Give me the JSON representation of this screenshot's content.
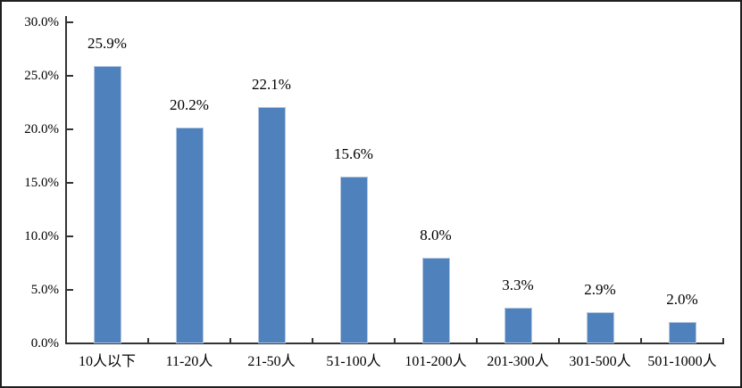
{
  "chart_data": {
    "type": "bar",
    "title": "",
    "xlabel": "",
    "ylabel": "",
    "categories": [
      "10人以下",
      "11-20人",
      "21-50人",
      "51-100人",
      "101-200人",
      "201-300人",
      "301-500人",
      "501-1000人"
    ],
    "values": [
      25.9,
      20.2,
      22.1,
      15.6,
      8.0,
      3.3,
      2.9,
      2.0
    ],
    "data_labels": [
      "25.9%",
      "20.2%",
      "22.1%",
      "15.6%",
      "8.0%",
      "3.3%",
      "2.9%",
      "2.0%"
    ],
    "ylim": [
      0,
      30
    ],
    "ytick_step": 5,
    "ytick_labels": [
      "0.0%",
      "5.0%",
      "10.0%",
      "15.0%",
      "20.0%",
      "25.0%",
      "30.0%"
    ],
    "grid": false,
    "legend_position": "none",
    "bar_color": "#4F81BD",
    "bar_border_color": "#b4c7e0",
    "axis_color": "#333333",
    "text_color": "#000000",
    "frame_border_color": "#1f1f1f",
    "background_color": "#ffffff"
  }
}
